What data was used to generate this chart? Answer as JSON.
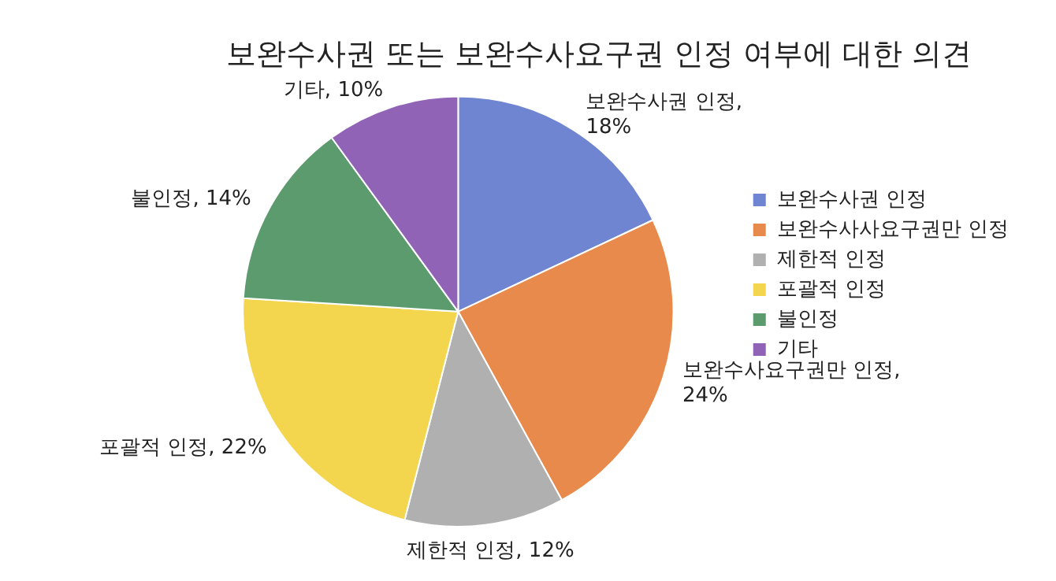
{
  "chart_data": {
    "type": "pie",
    "title": "보완수사권 또는 보완수사요구권 인정 여부에 대한 의견",
    "categories": [
      "보완수사권 인정",
      "보완수사사요구권만 인정",
      "제한적 인정",
      "포괄적 인정",
      "불인정",
      "기타"
    ],
    "values": [
      18,
      24,
      12,
      22,
      14,
      10
    ],
    "value_labels": [
      "보완수사권 인정, 18%",
      "보완수사요구권만 인정, 24%",
      "제한적 인정, 12%",
      "포괄적 인정, 22%",
      "불인정, 14%",
      "기타, 10%"
    ],
    "colors": [
      "#7085d2",
      "#e88a4b",
      "#b0b0b0",
      "#f3d64e",
      "#5b9b6d",
      "#9163b6"
    ],
    "legend": "right"
  }
}
